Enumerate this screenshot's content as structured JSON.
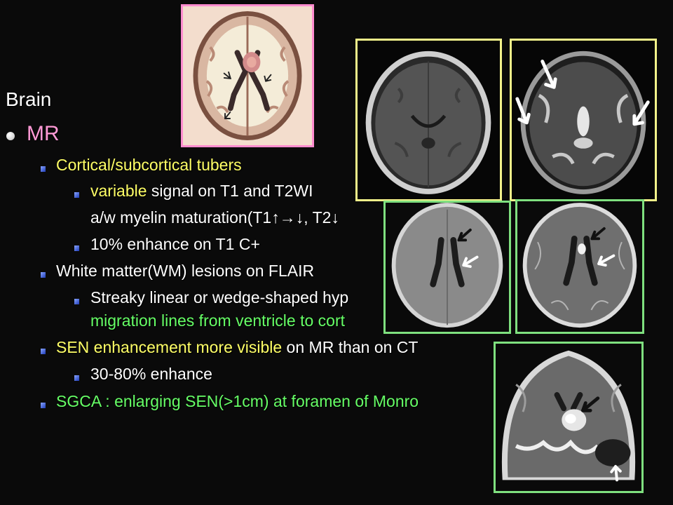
{
  "slide": {
    "heading": "Brain",
    "section": "MR",
    "items": [
      {
        "label": "Cortical/subcortical tubers",
        "sub": [
          {
            "highlight": "variable",
            "rest": " signal on T1 and T2WI"
          },
          {
            "text": "a/w myelin maturation(T1↑→↓, T2↓"
          },
          {
            "text": "10% enhance on T1 C+"
          }
        ]
      },
      {
        "label": "White matter(WM) lesions on FLAIR",
        "sub": [
          {
            "line1": "Streaky linear or wedge-shaped hyp",
            "line2": "migration lines from ventricle to cort"
          }
        ]
      },
      {
        "label_highlight": "SEN enhancement more visible",
        "label_rest": " on MR than on CT",
        "sub": [
          {
            "text": "30-80% enhance"
          }
        ]
      },
      {
        "label": "SGCA : enlarging SEN(>1cm) at foramen of Monro"
      }
    ]
  },
  "images": [
    {
      "name": "brain-illustration",
      "frame_color": "#ff8ccf"
    },
    {
      "name": "mri-t1-axial",
      "frame_color": "#f2f28a"
    },
    {
      "name": "mri-t2-axial",
      "frame_color": "#f2f28a"
    },
    {
      "name": "mri-t1-axial-ventricles",
      "frame_color": "#7fe07f"
    },
    {
      "name": "mri-t1-contrast-axial",
      "frame_color": "#7fe07f"
    },
    {
      "name": "mri-coronal-contrast",
      "frame_color": "#7fe07f"
    }
  ]
}
